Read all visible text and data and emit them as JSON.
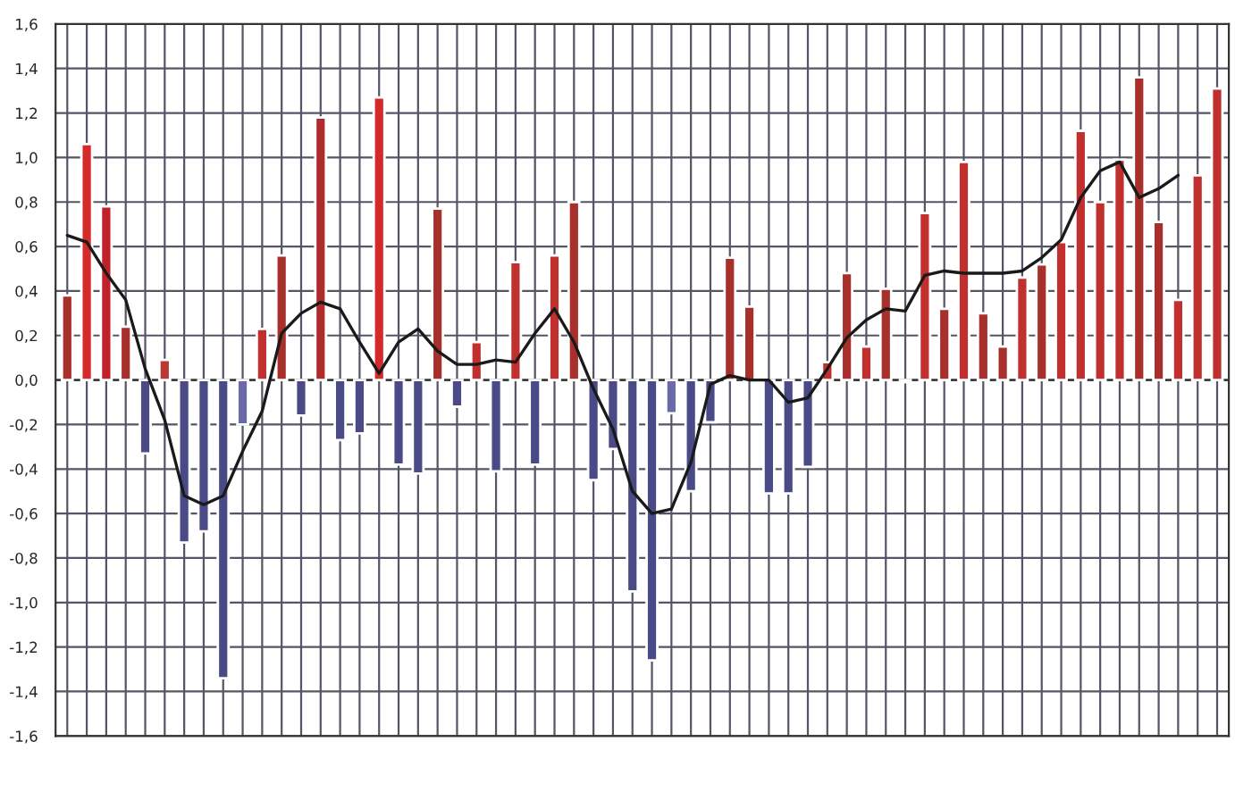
{
  "chart_data": {
    "type": "bar",
    "categories": [
      null,
      null,
      null,
      null,
      null,
      null,
      null,
      null,
      null,
      null,
      null,
      null,
      null,
      null,
      null,
      null,
      null,
      null,
      null,
      null,
      null,
      null,
      null,
      null,
      null,
      null,
      null,
      null,
      null,
      null,
      null,
      null,
      null,
      null,
      null,
      null,
      null,
      null,
      null,
      null,
      null,
      null,
      null,
      null,
      null,
      null,
      null,
      null,
      null,
      null,
      null,
      null,
      null,
      null,
      null,
      null,
      null,
      null,
      null,
      null
    ],
    "series": [
      {
        "values": [
          0.38,
          1.06,
          0.78,
          0.24,
          -0.33,
          0.09,
          -0.73,
          -0.68,
          -1.34,
          -0.2,
          0.23,
          0.56,
          -0.16,
          1.18,
          -0.27,
          -0.24,
          1.27,
          -0.38,
          -0.42,
          0.77,
          -0.12,
          0.17,
          -0.41,
          0.53,
          -0.38,
          0.56,
          0.8,
          -0.45,
          -0.31,
          -0.95,
          -1.26,
          -0.15,
          -0.5,
          -0.19,
          0.55,
          0.33,
          -0.51,
          -0.51,
          -0.39,
          0.08,
          0.48,
          0.15,
          0.41,
          -0.01,
          0.75,
          0.32,
          0.98,
          0.3,
          0.15,
          0.46,
          0.52,
          0.62,
          1.12,
          0.8,
          0.99,
          1.36,
          0.71,
          0.36,
          0.92,
          1.31
        ],
        "colors": [
          "#a8302c",
          "#d42a2a",
          "#c0202a",
          "#a8302c",
          "#4a4a86",
          "#b83a30",
          "#4a4a86",
          "#4a4a86",
          "#4a4a86",
          "#6a6aa8",
          "#c0302f",
          "#a8302c",
          "#4a4a86",
          "#b02c2c",
          "#4a4a86",
          "#4a4a86",
          "#d42a2a",
          "#4a4a86",
          "#4a4a86",
          "#a8302c",
          "#4a4a86",
          "#c0302f",
          "#4a4a86",
          "#c0302f",
          "#4a4a86",
          "#c0302f",
          "#a8302c",
          "#4a4a86",
          "#4a4a86",
          "#4a4a86",
          "#4a4a86",
          "#6a6aa8",
          "#4a4a86",
          "#4a4a86",
          "#a8302c",
          "#a8302c",
          "#4a4a86",
          "#4a4a86",
          "#4a4a86",
          "#c0302f",
          "#a8302c",
          "#c0302f",
          "#a8302c",
          "#c0302f",
          "#c0302f",
          "#a8302c",
          "#c0302f",
          "#a8302c",
          "#a8302c",
          "#c0302f",
          "#a8302c",
          "#c0302f",
          "#c0302f",
          "#c0302f",
          "#c0302f",
          "#a8302c",
          "#a8302c",
          "#c0302f",
          "#c0302f",
          "#c0302f"
        ]
      },
      {
        "type": "line",
        "color": "#1a1a1a",
        "values": [
          0.65,
          0.62,
          0.48,
          0.36,
          0.05,
          -0.18,
          -0.52,
          -0.56,
          -0.52,
          -0.32,
          -0.14,
          0.21,
          0.3,
          0.35,
          0.32,
          0.17,
          0.03,
          0.17,
          0.23,
          0.13,
          0.07,
          0.07,
          0.09,
          0.08,
          0.21,
          0.32,
          0.17,
          -0.04,
          -0.22,
          -0.5,
          -0.6,
          -0.58,
          -0.37,
          -0.02,
          0.02,
          0.0,
          0.0,
          -0.1,
          -0.08,
          0.05,
          0.19,
          0.27,
          0.32,
          0.31,
          0.47,
          0.49,
          0.48,
          0.48,
          0.48,
          0.49,
          0.55,
          0.63,
          0.82,
          0.94,
          0.98,
          0.82,
          0.86,
          0.92,
          null,
          null
        ]
      }
    ],
    "ylim": [
      -1.6,
      1.6
    ],
    "yticks": [
      {
        "value": -1.6,
        "label": "-1,6"
      },
      {
        "value": -1.4,
        "label": "-1,4"
      },
      {
        "value": -1.2,
        "label": "-1,2"
      },
      {
        "value": -1.0,
        "label": "-1,0"
      },
      {
        "value": -0.8,
        "label": "-0,8"
      },
      {
        "value": -0.6,
        "label": "-0,6"
      },
      {
        "value": -0.4,
        "label": "-0,4"
      },
      {
        "value": -0.2,
        "label": "-0,2"
      },
      {
        "value": 0.0,
        "label": "0,0"
      },
      {
        "value": 0.2,
        "label": "0,2"
      },
      {
        "value": 0.4,
        "label": "0,4"
      },
      {
        "value": 0.6,
        "label": "0,6"
      },
      {
        "value": 0.8,
        "label": "0,8"
      },
      {
        "value": 1.0,
        "label": "1,0"
      },
      {
        "value": 1.2,
        "label": "1,2"
      },
      {
        "value": 1.4,
        "label": "1,4"
      },
      {
        "value": 1.6,
        "label": "1,6"
      }
    ],
    "grid": true,
    "legend": false
  }
}
